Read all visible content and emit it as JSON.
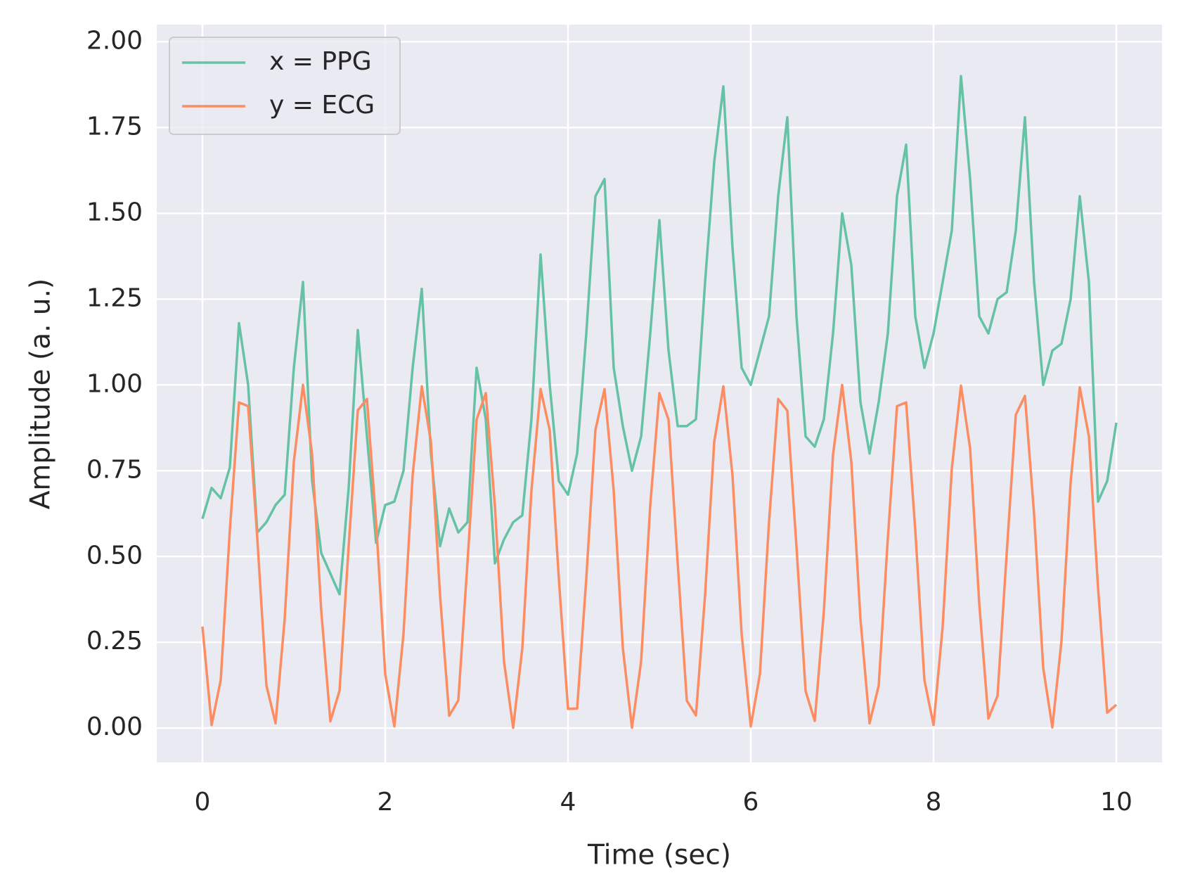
{
  "chart_data": {
    "type": "line",
    "xlabel": "Time (sec)",
    "ylabel": "Amplitude (a. u.)",
    "x": [
      0,
      0.1,
      0.2,
      0.3,
      0.4,
      0.5,
      0.6,
      0.7,
      0.8,
      0.9,
      1,
      1.1,
      1.2,
      1.3,
      1.4,
      1.5,
      1.6,
      1.7,
      1.8,
      1.9,
      2,
      2.1,
      2.2,
      2.3,
      2.4,
      2.5,
      2.6,
      2.7,
      2.8,
      2.9,
      3,
      3.1,
      3.2,
      3.3,
      3.4,
      3.5,
      3.6,
      3.7,
      3.8,
      3.9,
      4,
      4.1,
      4.2,
      4.3,
      4.4,
      4.5,
      4.6,
      4.7,
      4.8,
      4.9,
      5,
      5.1,
      5.2,
      5.3,
      5.4,
      5.5,
      5.6,
      5.7,
      5.8,
      5.9,
      6,
      6.1,
      6.2,
      6.3,
      6.4,
      6.5,
      6.6,
      6.7,
      6.8,
      6.9,
      7,
      7.1,
      7.2,
      7.3,
      7.4,
      7.5,
      7.6,
      7.7,
      7.8,
      7.9,
      8,
      8.1,
      8.2,
      8.3,
      8.4,
      8.5,
      8.6,
      8.7,
      8.8,
      8.9,
      9,
      9.1,
      9.2,
      9.3,
      9.4,
      9.5,
      9.6,
      9.7,
      9.8,
      9.9,
      10
    ],
    "series": [
      {
        "name": "x = PPG",
        "color": "#66c2a5",
        "values": [
          0.61,
          0.7,
          0.67,
          0.76,
          1.18,
          1.0,
          0.57,
          0.6,
          0.65,
          0.68,
          1.05,
          1.3,
          0.72,
          0.51,
          0.45,
          0.39,
          0.7,
          1.16,
          0.85,
          0.54,
          0.65,
          0.66,
          0.75,
          1.05,
          1.28,
          0.8,
          0.53,
          0.64,
          0.57,
          0.6,
          1.05,
          0.9,
          0.48,
          0.55,
          0.6,
          0.62,
          0.9,
          1.38,
          1.0,
          0.72,
          0.68,
          0.8,
          1.15,
          1.55,
          1.6,
          1.05,
          0.88,
          0.75,
          0.85,
          1.15,
          1.48,
          1.1,
          0.88,
          0.88,
          0.9,
          1.3,
          1.65,
          1.87,
          1.4,
          1.05,
          1.0,
          1.1,
          1.2,
          1.55,
          1.78,
          1.2,
          0.85,
          0.82,
          0.9,
          1.15,
          1.5,
          1.35,
          0.95,
          0.8,
          0.95,
          1.15,
          1.55,
          1.7,
          1.2,
          1.05,
          1.15,
          1.3,
          1.45,
          1.9,
          1.6,
          1.2,
          1.15,
          1.25,
          1.27,
          1.45,
          1.78,
          1.3,
          1.0,
          1.1,
          1.12,
          1.25,
          1.55,
          1.3,
          0.66,
          0.72,
          0.89
        ]
      },
      {
        "name": "y = ECG",
        "color": "#fc8d62",
        "values": [
          0.296,
          0.009,
          0.14,
          0.578,
          0.949,
          0.938,
          0.554,
          0.124,
          0.014,
          0.319,
          0.777,
          1.0,
          0.797,
          0.341,
          0.02,
          0.109,
          0.53,
          0.926,
          0.959,
          0.601,
          0.157,
          0.005,
          0.275,
          0.737,
          0.996,
          0.834,
          0.387,
          0.036,
          0.081,
          0.483,
          0.899,
          0.976,
          0.648,
          0.193,
          0.001,
          0.233,
          0.693,
          0.988,
          0.868,
          0.434,
          0.056,
          0.057,
          0.435,
          0.869,
          0.988,
          0.692,
          0.233,
          0.001,
          0.194,
          0.649,
          0.976,
          0.899,
          0.482,
          0.08,
          0.037,
          0.388,
          0.834,
          0.996,
          0.736,
          0.274,
          0.005,
          0.158,
          0.602,
          0.959,
          0.925,
          0.529,
          0.108,
          0.021,
          0.342,
          0.797,
          1.0,
          0.777,
          0.318,
          0.014,
          0.124,
          0.554,
          0.938,
          0.949,
          0.577,
          0.14,
          0.009,
          0.297,
          0.757,
          0.998,
          0.815,
          0.363,
          0.028,
          0.094,
          0.507,
          0.913,
          0.968,
          0.624,
          0.175,
          0.002,
          0.254,
          0.716,
          0.993,
          0.85,
          0.409,
          0.045,
          0.068
        ]
      }
    ],
    "xlim": [
      -0.5,
      10.5
    ],
    "ylim": [
      -0.1,
      2.05
    ],
    "xticks": [
      0,
      2,
      4,
      6,
      8,
      10
    ],
    "yticks": [
      {
        "value": 0,
        "label": "0.00"
      },
      {
        "value": 0.25,
        "label": "0.25"
      },
      {
        "value": 0.5,
        "label": "0.50"
      },
      {
        "value": 0.75,
        "label": "0.75"
      },
      {
        "value": 1,
        "label": "1.00"
      },
      {
        "value": 1.25,
        "label": "1.25"
      },
      {
        "value": 1.5,
        "label": "1.50"
      },
      {
        "value": 1.75,
        "label": "1.75"
      },
      {
        "value": 2,
        "label": "2.00"
      }
    ],
    "grid": true,
    "legend": "upper left"
  }
}
